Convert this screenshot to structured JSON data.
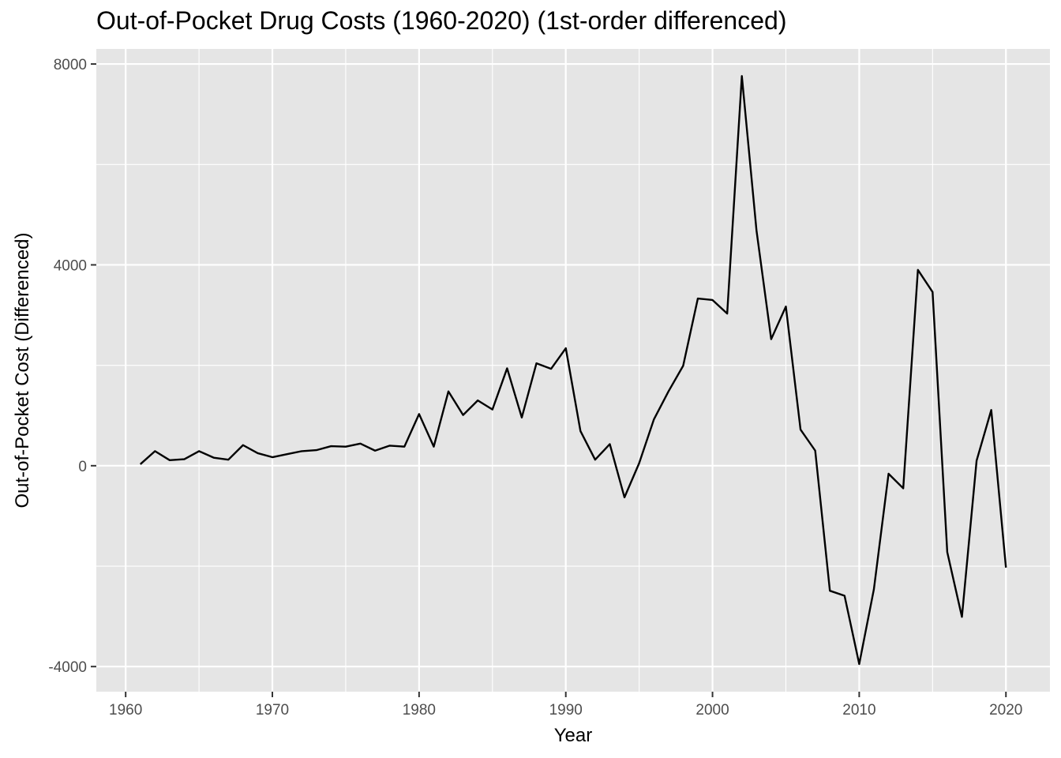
{
  "chart_data": {
    "type": "line",
    "title": "Out-of-Pocket Drug Costs (1960-2020) (1st-order differenced)",
    "xlabel": "Year",
    "ylabel": "Out-of-Pocket Cost (Differenced)",
    "xlim": [
      1958.0,
      2023.0
    ],
    "ylim": [
      -4500,
      8300
    ],
    "x_ticks": [
      1960,
      1970,
      1980,
      1990,
      2000,
      2010,
      2020
    ],
    "x_tick_labels": [
      "1960",
      "1970",
      "1980",
      "1990",
      "2000",
      "2010",
      "2020"
    ],
    "x_minor_ticks": [
      1965,
      1975,
      1985,
      1995,
      2005,
      2015
    ],
    "y_ticks": [
      -4000,
      0,
      4000,
      8000
    ],
    "y_tick_labels": [
      "-4000",
      "0",
      "4000",
      "8000"
    ],
    "y_minor_ticks": [
      -2000,
      2000,
      6000
    ],
    "grid": true,
    "legend": "none",
    "colors": {
      "panel_background": "#e5e5e5",
      "grid": "#ffffff",
      "line": "#000000",
      "tick_label": "#4d4d4d",
      "tick_mark": "#333333"
    },
    "series": [
      {
        "x": [
          1961,
          1962,
          1963,
          1964,
          1965,
          1966,
          1967,
          1968,
          1969,
          1970,
          1971,
          1972,
          1973,
          1974,
          1975,
          1976,
          1977,
          1978,
          1979,
          1980,
          1981,
          1982,
          1983,
          1984,
          1985,
          1986,
          1987,
          1988,
          1989,
          1990,
          1991,
          1992,
          1993,
          1994,
          1995,
          1996,
          1997,
          1998,
          1999,
          2000,
          2001,
          2002,
          2003,
          2004,
          2005,
          2006,
          2007,
          2008,
          2009,
          2010,
          2011,
          2012,
          2013,
          2014,
          2015,
          2016,
          2017,
          2018,
          2019,
          2020
        ],
        "values": [
          30,
          290,
          110,
          130,
          290,
          160,
          120,
          410,
          250,
          170,
          230,
          290,
          310,
          390,
          380,
          440,
          300,
          400,
          380,
          1030,
          380,
          1480,
          1010,
          1300,
          1120,
          1940,
          960,
          2040,
          1930,
          2340,
          690,
          120,
          430,
          -630,
          50,
          920,
          1480,
          1990,
          3330,
          3300,
          3030,
          7760,
          4680,
          2520,
          3170,
          720,
          300,
          -2490,
          -2590,
          -3950,
          -2460,
          -160,
          -450,
          3900,
          3460,
          -1720,
          -3010,
          100,
          1110,
          -2030
        ]
      }
    ]
  }
}
